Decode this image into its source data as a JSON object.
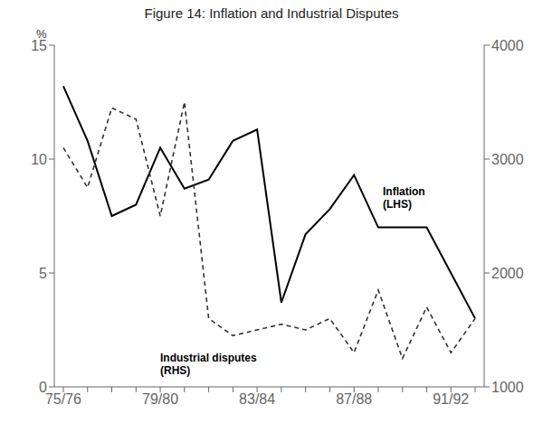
{
  "chart_data": {
    "type": "line",
    "title": "Figure 14: Inflation and Industrial Disputes",
    "categories": [
      "75/76",
      null,
      null,
      null,
      "79/80",
      null,
      null,
      null,
      "83/84",
      null,
      null,
      null,
      "87/88",
      null,
      null,
      null,
      "91/92",
      null
    ],
    "series": [
      {
        "color": "#000000",
        "line_style": "solid",
        "values": [
          13.2,
          10.8,
          7.5,
          8.0,
          10.5,
          8.7,
          9.1,
          10.8,
          11.3,
          3.7,
          6.7,
          7.8,
          9.3,
          7.0,
          7.0,
          7.0,
          5.0,
          3.0
        ]
      },
      {
        "axis": "y2",
        "color": "#333333",
        "line_style": "dashed",
        "values": [
          3100,
          2750,
          3450,
          3350,
          2500,
          3500,
          1600,
          1450,
          1500,
          1550,
          1500,
          1600,
          1300,
          1850,
          1250,
          1700,
          1300,
          1600
        ]
      }
    ],
    "ylim": [
      0,
      15
    ],
    "yticks": [
      0,
      5,
      10,
      15
    ],
    "y2lim": [
      1000,
      4000
    ],
    "y2ticks": [
      1000,
      2000,
      3000,
      4000
    ],
    "ylabel": "%",
    "annotations": [
      "Inflation\n(LHS)",
      "Industrial disputes\n(RHS)"
    ],
    "grid": false
  }
}
